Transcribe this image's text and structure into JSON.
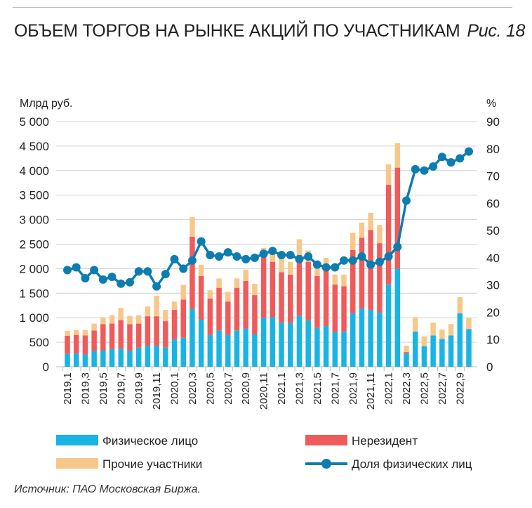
{
  "title": "ОБЪЕМ ТОРГОВ НА РЫНКЕ АКЦИЙ ПО УЧАСТНИКАМ",
  "figure_label": "Рис. 18",
  "source": "Источник: ПАО Московская Биржа.",
  "chart_data": {
    "type": "bar",
    "stacked": true,
    "ylabel": "Млрд руб.",
    "y2label": "%",
    "ylim": [
      0,
      5000
    ],
    "y2lim": [
      0,
      90
    ],
    "yticks": [
      "0",
      "500",
      "1 000",
      "1 500",
      "2 000",
      "2 500",
      "3 000",
      "3 500",
      "4 000",
      "4 500",
      "5 000"
    ],
    "y2ticks": [
      "0",
      "10",
      "20",
      "30",
      "40",
      "50",
      "60",
      "70",
      "80",
      "90"
    ],
    "grid": true,
    "legend_position": "bottom",
    "categories": [
      "2019,1",
      "2019,2",
      "2019,3",
      "2019,4",
      "2019,5",
      "2019,6",
      "2019,7",
      "2019,8",
      "2019,9",
      "2019,10",
      "2019,11",
      "2019,12",
      "2020,1",
      "2020,2",
      "2020,3",
      "2020,4",
      "2020,5",
      "2020,6",
      "2020,7",
      "2020,8",
      "2020,9",
      "2020,10",
      "2020,11",
      "2020,12",
      "2021,1",
      "2021,2",
      "2021,3",
      "2021,4",
      "2021,5",
      "2021,6",
      "2021,7",
      "2021,8",
      "2021,9",
      "2021,10",
      "2021,11",
      "2021,12",
      "2022,1",
      "2022,2",
      "2022,3",
      "2022,4",
      "2022,5",
      "2022,6",
      "2022,7",
      "2022,8",
      "2022,9",
      "2022,10"
    ],
    "series": [
      {
        "name": "Физическое лицо",
        "type": "bar",
        "color": "#1ab4e4",
        "values": [
          260,
          270,
          250,
          320,
          330,
          360,
          370,
          330,
          390,
          430,
          430,
          390,
          560,
          590,
          1180,
          960,
          650,
          740,
          650,
          740,
          780,
          660,
          1000,
          1010,
          900,
          890,
          1040,
          950,
          790,
          830,
          710,
          720,
          1090,
          1190,
          1160,
          1110,
          1680,
          2000,
          270,
          720,
          420,
          640,
          570,
          640,
          1090,
          770
        ]
      },
      {
        "name": "Нерезидент",
        "type": "bar",
        "color": "#ef5b5b",
        "values": [
          370,
          380,
          390,
          420,
          540,
          520,
          580,
          540,
          490,
          600,
          600,
          540,
          600,
          780,
          1470,
          890,
          740,
          870,
          680,
          870,
          970,
          800,
          1280,
          1130,
          1030,
          990,
          1240,
          1190,
          1060,
          1210,
          970,
          920,
          1290,
          1440,
          1630,
          1410,
          2030,
          2060,
          30,
          0,
          0,
          0,
          0,
          0,
          0,
          0
        ]
      },
      {
        "name": "Прочие участники",
        "type": "bar",
        "color": "#f7c88a",
        "values": [
          100,
          100,
          110,
          140,
          140,
          170,
          250,
          170,
          170,
          200,
          420,
          230,
          170,
          300,
          400,
          230,
          170,
          190,
          200,
          190,
          230,
          230,
          140,
          220,
          280,
          260,
          320,
          230,
          150,
          180,
          200,
          240,
          350,
          310,
          350,
          370,
          420,
          500,
          130,
          290,
          200,
          260,
          190,
          230,
          330,
          220
        ]
      },
      {
        "name": "Доля физических лиц",
        "type": "line",
        "axis": "right",
        "color": "#0d7db1",
        "values": [
          35.5,
          36.5,
          32.5,
          35.5,
          32,
          33,
          30.5,
          31,
          35,
          35,
          29.5,
          34,
          39.5,
          36,
          39,
          46,
          41,
          40.5,
          42,
          40.5,
          39.5,
          40,
          41.5,
          42.5,
          41,
          41,
          39.5,
          40.5,
          37.5,
          36.5,
          36.5,
          39,
          39,
          40.5,
          37.5,
          38.5,
          40.5,
          44,
          61,
          72.5,
          72,
          73.5,
          77,
          75,
          76.5,
          79
        ]
      }
    ]
  }
}
